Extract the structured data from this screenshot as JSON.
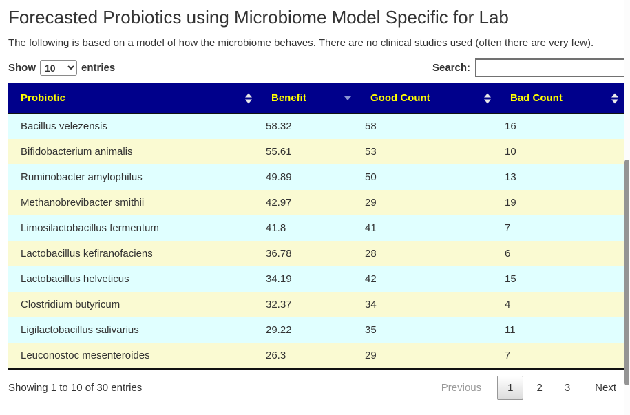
{
  "page": {
    "title": "Forecasted Probiotics using Microbiome Model Specific for Lab",
    "subtitle": "The following is based on a model of how the microbiome behaves. There are no clinical studies used (often there are very few)."
  },
  "controls": {
    "show_label": "Show",
    "entries_label": "entries",
    "page_length_value": "10",
    "search_label": "Search:",
    "search_value": ""
  },
  "table": {
    "columns": [
      {
        "label": "Probiotic",
        "sort_state": "unsorted"
      },
      {
        "label": "Benefit",
        "sort_state": "descending"
      },
      {
        "label": "Good Count",
        "sort_state": "unsorted"
      },
      {
        "label": "Bad Count",
        "sort_state": "unsorted"
      }
    ],
    "rows": [
      [
        "Bacillus velezensis",
        "58.32",
        "58",
        "16"
      ],
      [
        "Bifidobacterium animalis",
        "55.61",
        "53",
        "10"
      ],
      [
        "Ruminobacter amylophilus",
        "49.89",
        "50",
        "13"
      ],
      [
        "Methanobrevibacter smithii",
        "42.97",
        "29",
        "19"
      ],
      [
        "Limosilactobacillus fermentum",
        "41.8",
        "41",
        "7"
      ],
      [
        "Lactobacillus kefiranofaciens",
        "36.78",
        "28",
        "6"
      ],
      [
        "Lactobacillus helveticus",
        "34.19",
        "42",
        "15"
      ],
      [
        "Clostridium butyricum",
        "32.37",
        "34",
        "4"
      ],
      [
        "Ligilactobacillus salivarius",
        "29.22",
        "35",
        "11"
      ],
      [
        "Leuconostoc mesenteroides",
        "26.3",
        "29",
        "7"
      ]
    ]
  },
  "footer": {
    "info": "Showing 1 to 10 of 30 entries",
    "pagination": {
      "previous_label": "Previous",
      "pages": [
        "1",
        "2",
        "3"
      ],
      "current_page": "1",
      "next_label": "Next"
    }
  },
  "icons": {
    "sort_both": "sort-up-down-icon",
    "sort_desc": "sort-down-icon",
    "select_chevron": "chevron-down-icon"
  },
  "colors": {
    "header_bg": "#00008B",
    "header_text": "#FFFF00",
    "row_odd_bg": "#E0FFFF",
    "row_even_bg": "#FAFAD2",
    "sort_active_arrow": "#8A94D3",
    "sort_inactive_arrow": "#E9E9E9",
    "body_text": "#333333",
    "disabled_text": "#999999"
  }
}
